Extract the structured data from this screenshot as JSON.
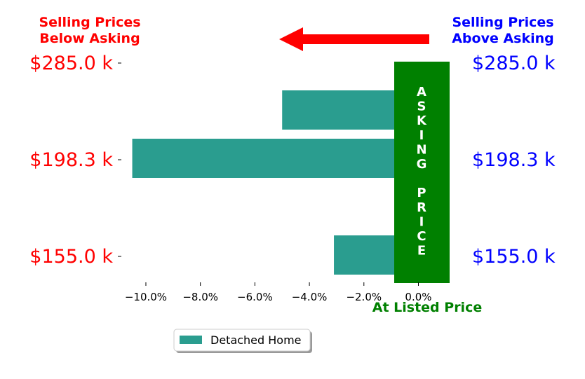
{
  "chart_data": {
    "type": "bar",
    "orientation": "horizontal",
    "x": [
      -5.0,
      -10.5,
      1.1,
      -3.1
    ],
    "series": [
      {
        "name": "Detached Home",
        "values": [
          -5.0,
          -10.5,
          1.1,
          -3.1
        ]
      }
    ],
    "y_tick_labels_left": [
      "$285.0 k",
      "$198.3 k",
      "$155.0 k"
    ],
    "y_tick_labels_right": [
      "$285.0 k",
      "$198.3 k",
      "$155.0 k"
    ],
    "x_tick_values": [
      -10,
      -8,
      -6,
      -4,
      -2,
      0
    ],
    "x_tick_labels": [
      "−10.0%",
      "−8.0%",
      "−6.0%",
      "−4.0%",
      "−2.0%",
      "0.0%"
    ],
    "xlim": [
      -10.9,
      1.3
    ],
    "grid": false,
    "legend": "bottom-center",
    "annotations": {
      "left_header": [
        "Selling Prices",
        "Below Asking"
      ],
      "right_header": [
        "Selling Prices",
        "Above Asking"
      ],
      "asking_band_text": [
        "A",
        "S",
        "K",
        "I",
        "N",
        "G",
        "",
        "P",
        "R",
        "I",
        "C",
        "E"
      ],
      "asking_label": "At Listed Price",
      "arrow": "right-to-left"
    },
    "colors": {
      "bar": "#2a9d8f",
      "band": "#008000",
      "left_text": "#ff0000",
      "right_text": "#0000ff",
      "arrow": "#ff0000"
    }
  }
}
